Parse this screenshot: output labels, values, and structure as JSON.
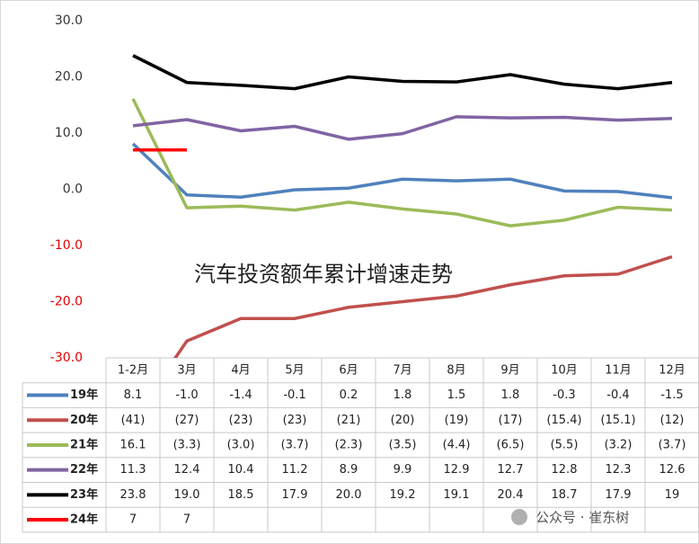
{
  "chart_data": {
    "type": "line",
    "annotation": "汽车投资额年累计增速走势",
    "watermark": "公众号 · 崔东树",
    "categories": [
      "1-2月",
      "3月",
      "4月",
      "5月",
      "6月",
      "7月",
      "8月",
      "9月",
      "10月",
      "11月",
      "12月"
    ],
    "ylim": [
      -30,
      30
    ],
    "yticks": [
      {
        "value": 30,
        "label": "30.0"
      },
      {
        "value": 20,
        "label": "20.0"
      },
      {
        "value": 10,
        "label": "10.0"
      },
      {
        "value": 0,
        "label": "0.0"
      },
      {
        "value": -10,
        "label": "-10.0"
      },
      {
        "value": -20,
        "label": "-20.0"
      },
      {
        "value": -30,
        "label": "-30.0"
      }
    ],
    "grid": false,
    "series": [
      {
        "name": "19年",
        "color": "#4f81bd",
        "values": [
          8.1,
          -1.0,
          -1.4,
          -0.1,
          0.2,
          1.8,
          1.5,
          1.8,
          -0.3,
          -0.4,
          -1.5
        ],
        "value_labels": [
          "8.1",
          "-1.0",
          "-1.4",
          "-0.1",
          "0.2",
          "1.8",
          "1.5",
          "1.8",
          "-0.3",
          "-0.4",
          "-1.5"
        ]
      },
      {
        "name": "20年",
        "color": "#c0504d",
        "values": [
          -41,
          -27,
          -23,
          -23,
          -21,
          -20,
          -19,
          -17,
          -15.4,
          -15.1,
          -12
        ],
        "value_labels": [
          "(41)",
          "(27)",
          "(23)",
          "(23)",
          "(21)",
          "(20)",
          "(19)",
          "(17)",
          "(15.4)",
          "(15.1)",
          "(12)"
        ]
      },
      {
        "name": "21年",
        "color": "#9bbb59",
        "values": [
          16.1,
          -3.3,
          -3.0,
          -3.7,
          -2.3,
          -3.5,
          -4.4,
          -6.5,
          -5.5,
          -3.2,
          -3.7
        ],
        "value_labels": [
          "16.1",
          "(3.3)",
          "(3.0)",
          "(3.7)",
          "(2.3)",
          "(3.5)",
          "(4.4)",
          "(6.5)",
          "(5.5)",
          "(3.2)",
          "(3.7)"
        ]
      },
      {
        "name": "22年",
        "color": "#8064a2",
        "values": [
          11.3,
          12.4,
          10.4,
          11.2,
          8.9,
          9.9,
          12.9,
          12.7,
          12.8,
          12.3,
          12.6
        ],
        "value_labels": [
          "11.3",
          "12.4",
          "10.4",
          "11.2",
          "8.9",
          "9.9",
          "12.9",
          "12.7",
          "12.8",
          "12.3",
          "12.6"
        ]
      },
      {
        "name": "23年",
        "color": "#000000",
        "values": [
          23.8,
          19.0,
          18.5,
          17.9,
          20.0,
          19.2,
          19.1,
          20.4,
          18.7,
          17.9,
          19
        ],
        "value_labels": [
          "23.8",
          "19.0",
          "18.5",
          "17.9",
          "20.0",
          "19.2",
          "19.1",
          "20.4",
          "18.7",
          "17.9",
          "19"
        ]
      },
      {
        "name": "24年",
        "color": "#ff0000",
        "values": [
          7,
          7,
          null,
          null,
          null,
          null,
          null,
          null,
          null,
          null,
          null
        ],
        "value_labels": [
          "7",
          "7",
          null,
          null,
          null,
          null,
          null,
          null,
          null,
          null,
          null
        ]
      }
    ]
  }
}
